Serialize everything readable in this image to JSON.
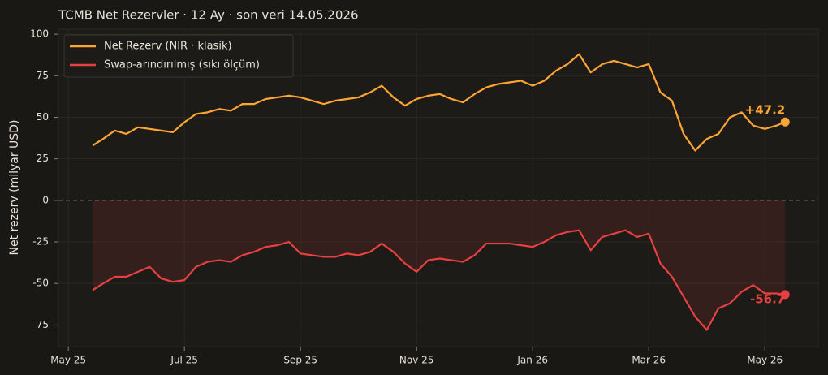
{
  "chart_data": {
    "type": "line",
    "title": "TCMB Net Rezervler · 12 Ay · son veri 14.05.2026",
    "y_label": "Net rezerv (milyar USD)",
    "x": [
      0.42,
      0.6,
      0.8,
      1.0,
      1.2,
      1.4,
      1.6,
      1.8,
      2.0,
      2.2,
      2.4,
      2.6,
      2.8,
      3.0,
      3.2,
      3.4,
      3.6,
      3.8,
      4.0,
      4.2,
      4.4,
      4.6,
      4.8,
      5.0,
      5.2,
      5.4,
      5.6,
      5.8,
      6.0,
      6.2,
      6.4,
      6.6,
      6.8,
      7.0,
      7.2,
      7.4,
      7.6,
      7.8,
      8.0,
      8.2,
      8.4,
      8.6,
      8.8,
      9.0,
      9.2,
      9.4,
      9.6,
      9.8,
      10.0,
      10.2,
      10.4,
      10.6,
      10.8,
      11.0,
      11.2,
      11.4,
      11.6,
      11.8,
      12.0,
      12.2,
      12.35
    ],
    "series": [
      {
        "name": "Net Rezerv (NIR · klasik)",
        "color": "#ffa533",
        "end_label": "+47.2",
        "values": [
          33,
          37,
          42,
          40,
          44,
          43,
          42,
          41,
          47,
          52,
          53,
          55,
          54,
          58,
          58,
          61,
          62,
          63,
          62,
          60,
          58,
          60,
          61,
          62,
          65,
          69,
          62,
          57,
          61,
          63,
          64,
          61,
          59,
          64,
          68,
          70,
          71,
          72,
          69,
          72,
          78,
          82,
          88,
          77,
          82,
          84,
          82,
          80,
          82,
          65,
          60,
          40,
          30,
          37,
          40,
          50,
          53,
          45,
          43,
          45,
          47.2
        ]
      },
      {
        "name": "Swap-arındırılmış (sıkı ölçüm)",
        "color": "#e84040",
        "end_label": "-56.7",
        "fill": true,
        "values": [
          -54,
          -50,
          -46,
          -46,
          -43,
          -40,
          -47,
          -49,
          -48,
          -40,
          -37,
          -36,
          -37,
          -33,
          -31,
          -28,
          -27,
          -25,
          -32,
          -33,
          -34,
          -34,
          -32,
          -33,
          -31,
          -26,
          -31,
          -38,
          -43,
          -36,
          -35,
          -36,
          -37,
          -33,
          -26,
          -26,
          -26,
          -27,
          -28,
          -25,
          -21,
          -19,
          -18,
          -30,
          -22,
          -20,
          -18,
          -22,
          -20,
          -38,
          -46,
          -58,
          -70,
          -78,
          -65,
          -62,
          -55,
          -51,
          -56,
          -56,
          -56.7
        ]
      }
    ],
    "xlim": [
      -0.17,
      12.92
    ],
    "xticks": [
      {
        "value": 0,
        "label": "May 25"
      },
      {
        "value": 2,
        "label": "Jul 25"
      },
      {
        "value": 4,
        "label": "Sep 25"
      },
      {
        "value": 6,
        "label": "Nov 25"
      },
      {
        "value": 8,
        "label": "Jan 26"
      },
      {
        "value": 10,
        "label": "Mar 26"
      },
      {
        "value": 12,
        "label": "May 26"
      }
    ],
    "ylim": [
      -88,
      103
    ],
    "yticks": [
      -75,
      -50,
      -25,
      0,
      25,
      50,
      75,
      100
    ],
    "grid": true,
    "legend": "upper left"
  }
}
